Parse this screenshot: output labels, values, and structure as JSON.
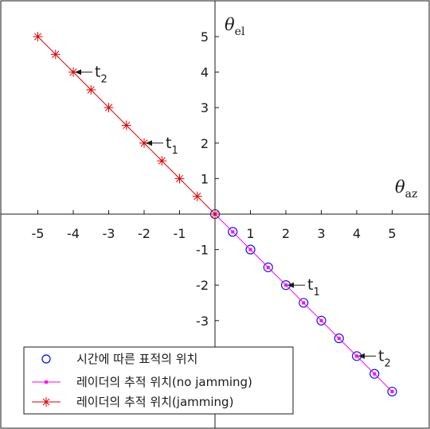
{
  "chart_data": {
    "type": "line",
    "xlim": [
      -5.5,
      6
    ],
    "ylim": [
      -5.2,
      5.5
    ],
    "x_ticks": [
      -5,
      -4,
      -3,
      -2,
      -1,
      1,
      2,
      3,
      4,
      5
    ],
    "x_tick_labels": [
      "-5",
      "-4",
      "-3",
      "-2",
      "-1",
      "1",
      "2",
      "3",
      "4",
      "5"
    ],
    "y_ticks": [
      5,
      4,
      3,
      2,
      1,
      -1,
      -2,
      -3
    ],
    "y_tick_labels": [
      "5",
      "4",
      "3",
      "2",
      "1",
      "-1",
      "-2",
      "-3"
    ],
    "x_axis_title": {
      "symbol": "θ",
      "sub": "az"
    },
    "y_axis_title": {
      "symbol": "θ",
      "sub": "el"
    },
    "series": [
      {
        "name": "시간에 따른 표적의 위치",
        "style": "circle-marker",
        "color": "#0000ff",
        "x": [
          0,
          0.5,
          1,
          1.5,
          2,
          2.5,
          3,
          3.5,
          4,
          4.5,
          5
        ],
        "y": [
          0,
          -0.5,
          -1,
          -1.5,
          -2,
          -2.5,
          -3,
          -3.5,
          -4,
          -4.5,
          -5
        ]
      },
      {
        "name": "레이더의 추적 위치(no jamming)",
        "style": "line-dot",
        "color": "#ff00ff",
        "x": [
          0,
          0.5,
          1,
          1.5,
          2,
          2.5,
          3,
          3.5,
          4,
          4.5,
          5
        ],
        "y": [
          0,
          -0.5,
          -1,
          -1.5,
          -2,
          -2.5,
          -3,
          -3.5,
          -4,
          -4.5,
          -5
        ]
      },
      {
        "name": "레이더의 추적 위치(jamming)",
        "style": "line-star",
        "color": "#e00000",
        "x": [
          0,
          -0.5,
          -1,
          -1.5,
          -2,
          -2.5,
          -3,
          -3.5,
          -4,
          -4.5,
          -5
        ],
        "y": [
          0,
          0.5,
          1,
          1.5,
          2,
          2.5,
          3,
          3.5,
          4,
          4.5,
          5
        ]
      }
    ],
    "annotations": [
      {
        "label": "t",
        "sub": "1",
        "x": -2,
        "y": 2
      },
      {
        "label": "t",
        "sub": "2",
        "x": -4,
        "y": 4
      },
      {
        "label": "t",
        "sub": "1",
        "x": 2,
        "y": -2
      },
      {
        "label": "t",
        "sub": "2",
        "x": 4,
        "y": -4
      }
    ],
    "legend": {
      "location": "bottom-left",
      "entries": [
        "시간에 따른 표적의 위치",
        "레이더의 추적 위치(no jamming)",
        "레이더의 추적 위치(jamming)"
      ]
    }
  }
}
